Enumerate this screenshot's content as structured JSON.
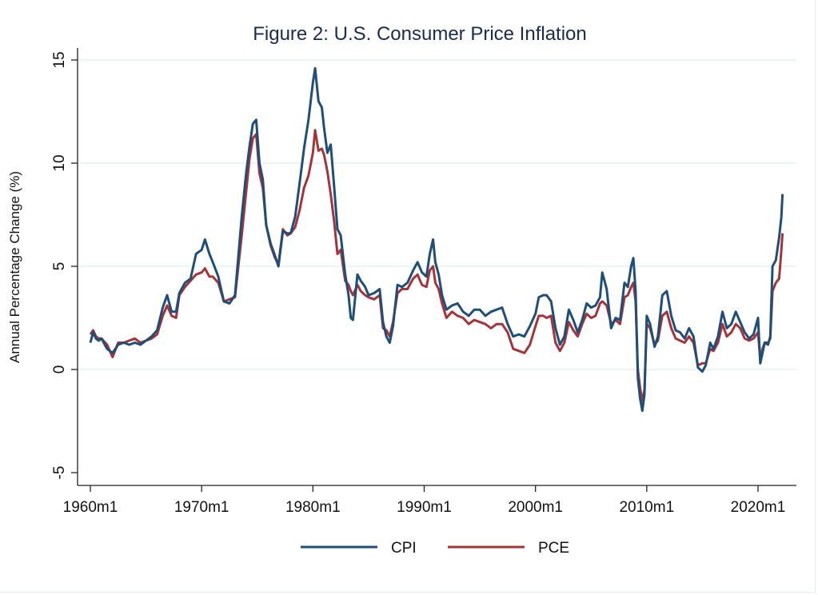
{
  "chart_data": {
    "type": "line",
    "title": "Figure 2: U.S. Consumer Price Inflation",
    "xlabel": "",
    "ylabel": "Annual Percentage Change (%)",
    "xlim": [
      1959.1,
      2023.4
    ],
    "ylim": [
      -5.5,
      15.2
    ],
    "grid": true,
    "legend_position": "bottom",
    "x_ticks": [
      {
        "value": 1960,
        "label": "1960m1"
      },
      {
        "value": 1970,
        "label": "1970m1"
      },
      {
        "value": 1980,
        "label": "1980m1"
      },
      {
        "value": 1990,
        "label": "1990m1"
      },
      {
        "value": 2000,
        "label": "2000m1"
      },
      {
        "value": 2010,
        "label": "2010m1"
      },
      {
        "value": 2020,
        "label": "2020m1"
      }
    ],
    "y_ticks": [
      {
        "value": 15,
        "label": "15"
      },
      {
        "value": 10,
        "label": "10"
      },
      {
        "value": 5,
        "label": "5"
      },
      {
        "value": 0,
        "label": "0"
      },
      {
        "value": -5,
        "label": "-5"
      }
    ],
    "series": [
      {
        "name": "CPI",
        "color": "#1f4e79",
        "x": [
          1960.0,
          1960.25,
          1960.5,
          1960.75,
          1961.0,
          1961.5,
          1962.0,
          1962.5,
          1963.0,
          1963.5,
          1964.0,
          1964.5,
          1965.0,
          1965.5,
          1966.0,
          1966.5,
          1966.9,
          1967.3,
          1967.7,
          1968.0,
          1968.5,
          1969.0,
          1969.5,
          1970.0,
          1970.3,
          1970.7,
          1971.0,
          1971.5,
          1972.0,
          1972.5,
          1973.0,
          1973.3,
          1973.6,
          1974.0,
          1974.3,
          1974.6,
          1974.9,
          1975.2,
          1975.5,
          1975.8,
          1976.2,
          1976.6,
          1976.9,
          1977.3,
          1977.7,
          1978.0,
          1978.4,
          1978.8,
          1979.2,
          1979.6,
          1980.0,
          1980.2,
          1980.5,
          1980.8,
          1981.0,
          1981.3,
          1981.6,
          1981.9,
          1982.2,
          1982.5,
          1982.9,
          1983.2,
          1983.4,
          1983.6,
          1984.0,
          1984.3,
          1984.7,
          1985.0,
          1985.5,
          1986.0,
          1986.3,
          1986.6,
          1986.9,
          1987.2,
          1987.6,
          1988.0,
          1988.5,
          1989.0,
          1989.4,
          1989.8,
          1990.2,
          1990.5,
          1990.8,
          1991.0,
          1991.3,
          1991.6,
          1992.0,
          1992.5,
          1993.0,
          1993.5,
          1994.0,
          1994.5,
          1995.0,
          1995.5,
          1996.0,
          1996.5,
          1997.0,
          1997.5,
          1998.0,
          1998.5,
          1999.0,
          1999.5,
          2000.0,
          2000.3,
          2000.7,
          2001.0,
          2001.4,
          2001.8,
          2002.2,
          2002.6,
          2003.0,
          2003.4,
          2003.8,
          2004.2,
          2004.6,
          2005.0,
          2005.4,
          2005.8,
          2006.0,
          2006.4,
          2006.8,
          2007.2,
          2007.6,
          2008.0,
          2008.3,
          2008.6,
          2008.8,
          2009.0,
          2009.2,
          2009.4,
          2009.6,
          2009.8,
          2010.0,
          2010.3,
          2010.7,
          2011.0,
          2011.4,
          2011.8,
          2012.2,
          2012.6,
          2013.0,
          2013.4,
          2013.8,
          2014.2,
          2014.6,
          2015.0,
          2015.3,
          2015.7,
          2016.0,
          2016.4,
          2016.8,
          2017.2,
          2017.6,
          2018.0,
          2018.4,
          2018.8,
          2019.2,
          2019.6,
          2020.0,
          2020.2,
          2020.4,
          2020.6,
          2020.9,
          2021.1,
          2021.3,
          2021.6,
          2021.9,
          2022.1,
          2022.2
        ],
        "values": [
          1.3,
          1.8,
          1.5,
          1.4,
          1.5,
          1.0,
          0.8,
          1.2,
          1.3,
          1.2,
          1.3,
          1.2,
          1.4,
          1.6,
          1.9,
          3.0,
          3.6,
          2.8,
          2.8,
          3.7,
          4.2,
          4.4,
          5.6,
          5.8,
          6.3,
          5.6,
          5.2,
          4.5,
          3.3,
          3.2,
          3.6,
          5.5,
          7.4,
          9.5,
          10.8,
          11.9,
          12.1,
          10.0,
          9.2,
          7.0,
          6.1,
          5.5,
          5.0,
          6.7,
          6.6,
          6.6,
          7.4,
          9.0,
          10.7,
          12.1,
          13.9,
          14.6,
          13.0,
          12.7,
          11.7,
          10.5,
          10.9,
          8.9,
          6.8,
          6.5,
          4.6,
          3.6,
          2.5,
          2.4,
          4.6,
          4.3,
          4.0,
          3.6,
          3.7,
          3.9,
          2.3,
          1.6,
          1.3,
          2.1,
          4.1,
          4.0,
          4.2,
          4.8,
          5.2,
          4.7,
          4.5,
          5.6,
          6.3,
          5.2,
          4.6,
          3.6,
          2.9,
          3.1,
          3.2,
          2.8,
          2.6,
          2.9,
          2.9,
          2.6,
          2.8,
          2.9,
          3.0,
          2.2,
          1.6,
          1.7,
          1.6,
          2.1,
          2.7,
          3.5,
          3.6,
          3.6,
          3.3,
          2.0,
          1.2,
          1.6,
          2.9,
          2.4,
          1.8,
          2.4,
          3.2,
          3.0,
          3.1,
          3.5,
          4.7,
          3.9,
          2.0,
          2.5,
          2.4,
          4.2,
          4.0,
          5.0,
          5.4,
          3.8,
          -0.4,
          -1.4,
          -2.0,
          -1.2,
          2.6,
          2.2,
          1.1,
          1.6,
          3.6,
          3.8,
          2.6,
          1.9,
          1.8,
          1.5,
          2.0,
          1.6,
          0.1,
          -0.1,
          0.2,
          1.3,
          1.0,
          1.6,
          2.8,
          2.0,
          2.2,
          2.8,
          2.3,
          1.8,
          1.5,
          1.7,
          2.5,
          0.3,
          0.8,
          1.3,
          1.2,
          1.6,
          5.0,
          5.3,
          6.4,
          7.4,
          8.5
        ]
      },
      {
        "name": "PCE",
        "color": "#a4343a",
        "x": [
          1960.0,
          1960.25,
          1960.5,
          1960.75,
          1961.0,
          1961.5,
          1962.0,
          1962.5,
          1963.0,
          1963.5,
          1964.0,
          1964.5,
          1965.0,
          1965.5,
          1966.0,
          1966.5,
          1966.9,
          1967.3,
          1967.7,
          1968.0,
          1968.5,
          1969.0,
          1969.5,
          1970.0,
          1970.3,
          1970.7,
          1971.0,
          1971.5,
          1972.0,
          1972.5,
          1973.0,
          1973.3,
          1973.6,
          1974.0,
          1974.3,
          1974.6,
          1974.9,
          1975.2,
          1975.5,
          1975.8,
          1976.2,
          1976.6,
          1976.9,
          1977.3,
          1977.7,
          1978.0,
          1978.4,
          1978.8,
          1979.2,
          1979.6,
          1980.0,
          1980.2,
          1980.5,
          1980.8,
          1981.0,
          1981.3,
          1981.6,
          1981.9,
          1982.2,
          1982.5,
          1982.9,
          1983.2,
          1983.4,
          1983.6,
          1984.0,
          1984.3,
          1984.7,
          1985.0,
          1985.5,
          1986.0,
          1986.3,
          1986.6,
          1986.9,
          1987.2,
          1987.6,
          1988.0,
          1988.5,
          1989.0,
          1989.4,
          1989.8,
          1990.2,
          1990.5,
          1990.8,
          1991.0,
          1991.3,
          1991.6,
          1992.0,
          1992.5,
          1993.0,
          1993.5,
          1994.0,
          1994.5,
          1995.0,
          1995.5,
          1996.0,
          1996.5,
          1997.0,
          1997.5,
          1998.0,
          1998.5,
          1999.0,
          1999.5,
          2000.0,
          2000.3,
          2000.7,
          2001.0,
          2001.4,
          2001.8,
          2002.2,
          2002.6,
          2003.0,
          2003.4,
          2003.8,
          2004.2,
          2004.6,
          2005.0,
          2005.4,
          2005.8,
          2006.0,
          2006.4,
          2006.8,
          2007.2,
          2007.6,
          2008.0,
          2008.3,
          2008.6,
          2008.8,
          2009.0,
          2009.2,
          2009.4,
          2009.6,
          2009.8,
          2010.0,
          2010.3,
          2010.7,
          2011.0,
          2011.4,
          2011.8,
          2012.2,
          2012.6,
          2013.0,
          2013.4,
          2013.8,
          2014.2,
          2014.6,
          2015.0,
          2015.3,
          2015.7,
          2016.0,
          2016.4,
          2016.8,
          2017.2,
          2017.6,
          2018.0,
          2018.4,
          2018.8,
          2019.2,
          2019.6,
          2020.0,
          2020.2,
          2020.4,
          2020.6,
          2020.9,
          2021.1,
          2021.3,
          2021.6,
          2021.9,
          2022.1,
          2022.2
        ],
        "values": [
          1.7,
          1.9,
          1.6,
          1.5,
          1.5,
          1.2,
          0.6,
          1.3,
          1.3,
          1.4,
          1.5,
          1.3,
          1.4,
          1.5,
          1.7,
          2.6,
          3.1,
          2.6,
          2.5,
          3.6,
          4.0,
          4.3,
          4.6,
          4.7,
          4.9,
          4.5,
          4.5,
          4.2,
          3.3,
          3.4,
          3.5,
          5.0,
          6.5,
          8.6,
          10.2,
          11.2,
          11.4,
          9.5,
          8.8,
          7.0,
          6.0,
          5.4,
          5.1,
          6.8,
          6.5,
          6.6,
          6.9,
          7.7,
          8.8,
          9.4,
          10.5,
          11.6,
          10.6,
          10.7,
          10.4,
          9.6,
          8.5,
          7.2,
          5.6,
          5.8,
          4.3,
          4.1,
          3.8,
          3.6,
          4.1,
          3.8,
          3.6,
          3.5,
          3.4,
          3.6,
          2.0,
          1.9,
          1.6,
          2.3,
          3.7,
          3.9,
          3.9,
          4.4,
          4.6,
          4.1,
          4.0,
          4.8,
          5.0,
          4.2,
          3.9,
          3.2,
          2.5,
          2.8,
          2.6,
          2.5,
          2.2,
          2.4,
          2.3,
          2.2,
          2.0,
          2.2,
          2.2,
          1.8,
          1.0,
          0.9,
          0.8,
          1.2,
          2.1,
          2.6,
          2.6,
          2.5,
          2.6,
          1.3,
          0.9,
          1.3,
          2.3,
          1.9,
          1.6,
          2.2,
          2.7,
          2.5,
          2.6,
          3.2,
          3.3,
          3.1,
          2.2,
          2.4,
          2.2,
          3.5,
          3.6,
          4.0,
          4.2,
          3.3,
          0.0,
          -0.9,
          -1.5,
          -1.0,
          2.2,
          2.0,
          1.2,
          1.4,
          2.6,
          2.8,
          2.0,
          1.5,
          1.4,
          1.3,
          1.6,
          1.3,
          0.2,
          0.3,
          0.3,
          1.0,
          0.9,
          1.3,
          2.2,
          1.6,
          1.8,
          2.2,
          2.0,
          1.5,
          1.4,
          1.5,
          1.8,
          0.5,
          1.0,
          1.3,
          1.3,
          1.5,
          3.8,
          4.2,
          4.4,
          5.8,
          6.6
        ]
      }
    ]
  }
}
